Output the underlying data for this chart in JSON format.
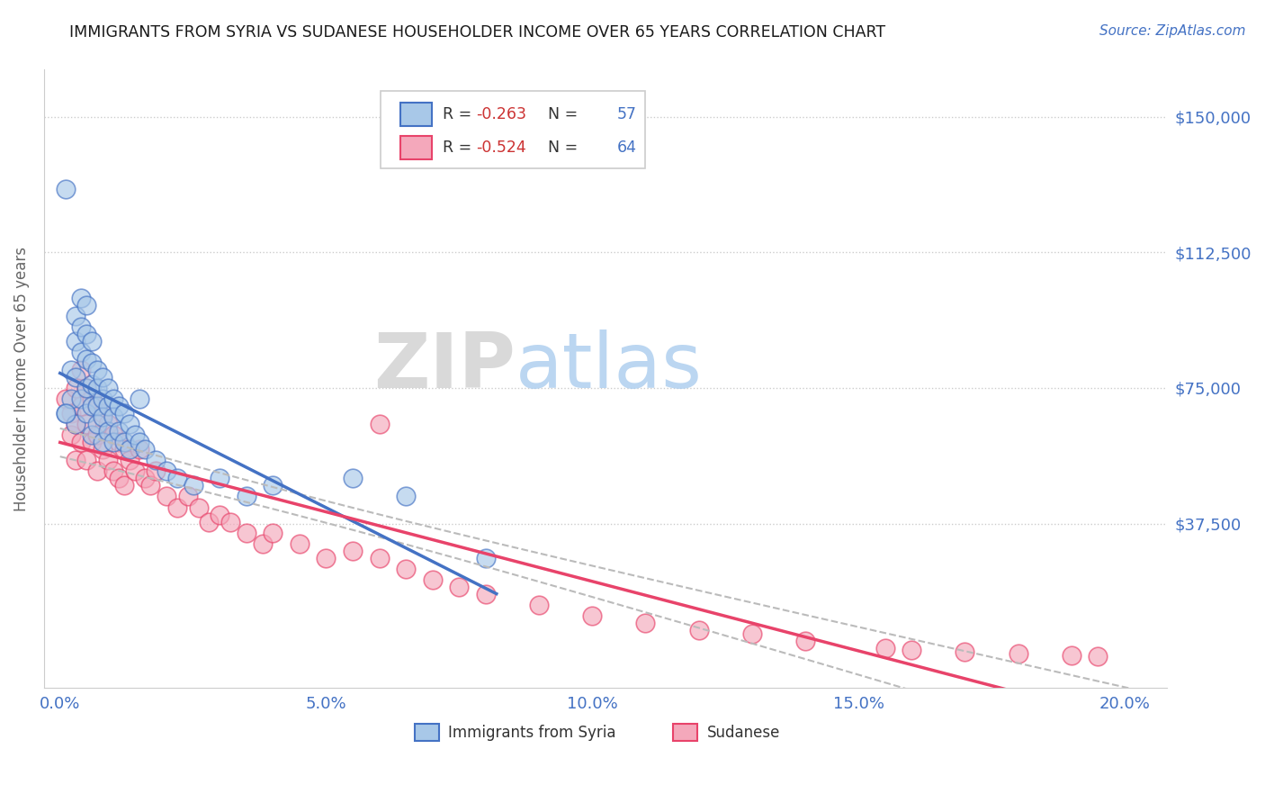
{
  "title": "IMMIGRANTS FROM SYRIA VS SUDANESE HOUSEHOLDER INCOME OVER 65 YEARS CORRELATION CHART",
  "source": "Source: ZipAtlas.com",
  "ylabel": "Householder Income Over 65 years",
  "xlabel_ticks": [
    "0.0%",
    "5.0%",
    "10.0%",
    "15.0%",
    "20.0%"
  ],
  "xlabel_vals": [
    0.0,
    0.05,
    0.1,
    0.15,
    0.2
  ],
  "ytick_labels": [
    "$150,000",
    "$112,500",
    "$75,000",
    "$37,500"
  ],
  "ytick_vals": [
    150000,
    112500,
    75000,
    37500
  ],
  "xlim": [
    -0.003,
    0.208
  ],
  "ylim": [
    -8000,
    163000
  ],
  "legend1_label_prefix": "R = ",
  "legend1_R": "-0.263",
  "legend1_N_label": "   N = ",
  "legend1_N": "57",
  "legend2_label_prefix": "R = ",
  "legend2_R": "-0.524",
  "legend2_N_label": "   N = ",
  "legend2_N": "64",
  "legend_bottom1": "Immigrants from Syria",
  "legend_bottom2": "Sudanese",
  "watermark_zip": "ZIP",
  "watermark_atlas": "atlas",
  "title_color": "#1a1a1a",
  "source_color": "#4472c4",
  "axis_label_color": "#666666",
  "tick_color": "#4472c4",
  "scatter_syria_color": "#a8c8e8",
  "scatter_sudan_color": "#f4a8bb",
  "line_syria_color": "#4472c4",
  "line_sudan_color": "#e8436a",
  "confint_color": "#bbbbbb",
  "R_color": "#cc3333",
  "N_color": "#4472c4",
  "syria_x": [
    0.001,
    0.001,
    0.002,
    0.002,
    0.003,
    0.003,
    0.003,
    0.003,
    0.004,
    0.004,
    0.004,
    0.004,
    0.005,
    0.005,
    0.005,
    0.005,
    0.005,
    0.006,
    0.006,
    0.006,
    0.006,
    0.006,
    0.007,
    0.007,
    0.007,
    0.007,
    0.008,
    0.008,
    0.008,
    0.008,
    0.009,
    0.009,
    0.009,
    0.01,
    0.01,
    0.01,
    0.011,
    0.011,
    0.012,
    0.012,
    0.013,
    0.013,
    0.014,
    0.015,
    0.015,
    0.016,
    0.018,
    0.02,
    0.022,
    0.025,
    0.03,
    0.035,
    0.04,
    0.055,
    0.065,
    0.08,
    0.001
  ],
  "syria_y": [
    68000,
    130000,
    72000,
    80000,
    95000,
    88000,
    78000,
    65000,
    100000,
    92000,
    85000,
    72000,
    98000,
    90000,
    83000,
    75000,
    68000,
    88000,
    82000,
    76000,
    70000,
    62000,
    80000,
    75000,
    70000,
    65000,
    78000,
    72000,
    67000,
    60000,
    75000,
    70000,
    63000,
    72000,
    67000,
    60000,
    70000,
    63000,
    68000,
    60000,
    65000,
    58000,
    62000,
    72000,
    60000,
    58000,
    55000,
    52000,
    50000,
    48000,
    50000,
    45000,
    48000,
    50000,
    45000,
    28000,
    68000
  ],
  "sudan_x": [
    0.001,
    0.002,
    0.002,
    0.003,
    0.003,
    0.003,
    0.004,
    0.004,
    0.004,
    0.005,
    0.005,
    0.005,
    0.006,
    0.006,
    0.007,
    0.007,
    0.007,
    0.008,
    0.008,
    0.009,
    0.009,
    0.01,
    0.01,
    0.011,
    0.011,
    0.012,
    0.012,
    0.013,
    0.014,
    0.015,
    0.016,
    0.017,
    0.018,
    0.02,
    0.022,
    0.024,
    0.026,
    0.028,
    0.03,
    0.032,
    0.035,
    0.038,
    0.04,
    0.045,
    0.05,
    0.055,
    0.06,
    0.065,
    0.07,
    0.075,
    0.08,
    0.09,
    0.1,
    0.11,
    0.12,
    0.13,
    0.14,
    0.155,
    0.16,
    0.17,
    0.18,
    0.19,
    0.195,
    0.06
  ],
  "sudan_y": [
    72000,
    68000,
    62000,
    75000,
    65000,
    55000,
    80000,
    70000,
    60000,
    75000,
    65000,
    55000,
    72000,
    60000,
    70000,
    62000,
    52000,
    68000,
    58000,
    65000,
    55000,
    62000,
    52000,
    60000,
    50000,
    58000,
    48000,
    55000,
    52000,
    58000,
    50000,
    48000,
    52000,
    45000,
    42000,
    45000,
    42000,
    38000,
    40000,
    38000,
    35000,
    32000,
    35000,
    32000,
    28000,
    30000,
    28000,
    25000,
    22000,
    20000,
    18000,
    15000,
    12000,
    10000,
    8000,
    7000,
    5000,
    3000,
    2500,
    2000,
    1500,
    1000,
    800,
    65000
  ]
}
